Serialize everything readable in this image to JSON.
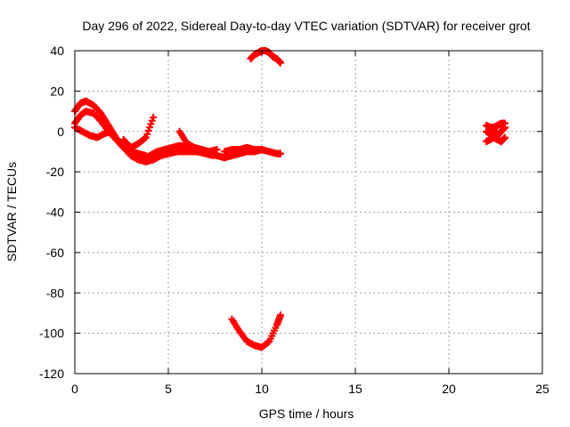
{
  "chart_data": {
    "type": "scatter",
    "title": "Day 296 of 2022, Sidereal Day-to-day VTEC variation (SDTVAR) for receiver grot",
    "xlabel": "GPS time / hours",
    "ylabel": "SDTVAR / TECUs",
    "xlim": [
      0,
      25
    ],
    "ylim": [
      -120,
      40
    ],
    "xticks": [
      0,
      5,
      10,
      15,
      20,
      25
    ],
    "yticks": [
      -120,
      -100,
      -80,
      -60,
      -40,
      -20,
      0,
      20,
      40
    ],
    "xtick_labels": [
      "0",
      "5",
      "10",
      "15",
      "20",
      "25"
    ],
    "ytick_labels": [
      "-120",
      "-100",
      "-80",
      "-60",
      "-40",
      "-20",
      "0",
      "20",
      "40"
    ],
    "grid": true,
    "marker": "plus",
    "series_color": "#ff0000",
    "series": [
      {
        "x": [
          0,
          0.3,
          0.6,
          1.0,
          1.4,
          1.8,
          2.2,
          2.6,
          3.0,
          3.4,
          3.8,
          4.2,
          4.6,
          5.0,
          5.5,
          6.0,
          6.5,
          7.0,
          7.4
        ],
        "y": [
          10,
          14,
          15,
          13,
          9,
          3,
          -3,
          -8,
          -12,
          -14,
          -15,
          -14,
          -12,
          -11,
          -10,
          -10,
          -10,
          -11,
          -12
        ]
      },
      {
        "x": [
          0,
          0.3,
          0.6,
          1.0,
          1.4,
          1.8,
          2.2,
          2.6,
          3.0,
          3.4,
          3.8
        ],
        "y": [
          4,
          8,
          10,
          9,
          5,
          0,
          -4,
          -8,
          -10,
          -11,
          -12
        ]
      },
      {
        "x": [
          0,
          0.4,
          0.8,
          1.2,
          1.6,
          2.0
        ],
        "y": [
          2,
          0,
          -2,
          -3,
          -1,
          0
        ]
      },
      {
        "x": [
          2.6,
          3.0,
          3.4,
          3.8,
          4.2
        ],
        "y": [
          -4,
          -8,
          -6,
          -3,
          7
        ]
      },
      {
        "x": [
          3.6,
          4.0,
          4.4,
          4.8,
          5.2,
          5.6,
          6.0,
          6.4,
          6.8,
          7.2,
          7.6
        ],
        "y": [
          -14,
          -12,
          -10,
          -9,
          -8,
          -7,
          -8,
          -9,
          -10,
          -11,
          -12
        ]
      },
      {
        "x": [
          5.6,
          6.0,
          6.4,
          6.8,
          7.2,
          7.6
        ],
        "y": [
          0,
          -6,
          -8,
          -9,
          -10,
          -9
        ]
      },
      {
        "x": [
          7.6,
          8.0,
          8.4,
          8.8,
          9.2,
          9.6,
          10.0,
          10.4,
          10.8,
          11.0
        ],
        "y": [
          -12,
          -13,
          -12,
          -11,
          -10,
          -10,
          -9,
          -10,
          -11,
          -11
        ]
      },
      {
        "x": [
          8.0,
          8.4,
          8.8,
          9.2,
          9.6,
          10.0
        ],
        "y": [
          -10,
          -9,
          -9,
          -8,
          -9,
          -9
        ]
      },
      {
        "x": [
          9.4,
          9.6,
          9.8,
          10.0,
          10.2,
          10.4,
          10.6,
          10.8,
          11.0
        ],
        "y": [
          36,
          38,
          39,
          40,
          40,
          39,
          37,
          36,
          34
        ]
      },
      {
        "x": [
          8.4,
          8.8,
          9.2,
          9.6,
          10.0,
          10.4,
          10.8,
          11.0
        ],
        "y": [
          -93,
          -99,
          -104,
          -106,
          -107,
          -104,
          -96,
          -91
        ]
      },
      {
        "x": [
          22.0,
          22.2,
          22.4,
          22.6,
          22.8,
          23.0
        ],
        "y": [
          0,
          -1,
          1,
          -2,
          0,
          2
        ]
      },
      {
        "x": [
          22.0,
          22.2,
          22.4,
          22.6,
          22.8,
          23.0
        ],
        "y": [
          -5,
          -4,
          -3,
          -4,
          -5,
          -3
        ]
      },
      {
        "x": [
          22.0,
          22.2,
          22.4,
          22.6,
          22.8,
          23.0
        ],
        "y": [
          3,
          2,
          2,
          3,
          4,
          4
        ]
      }
    ]
  }
}
